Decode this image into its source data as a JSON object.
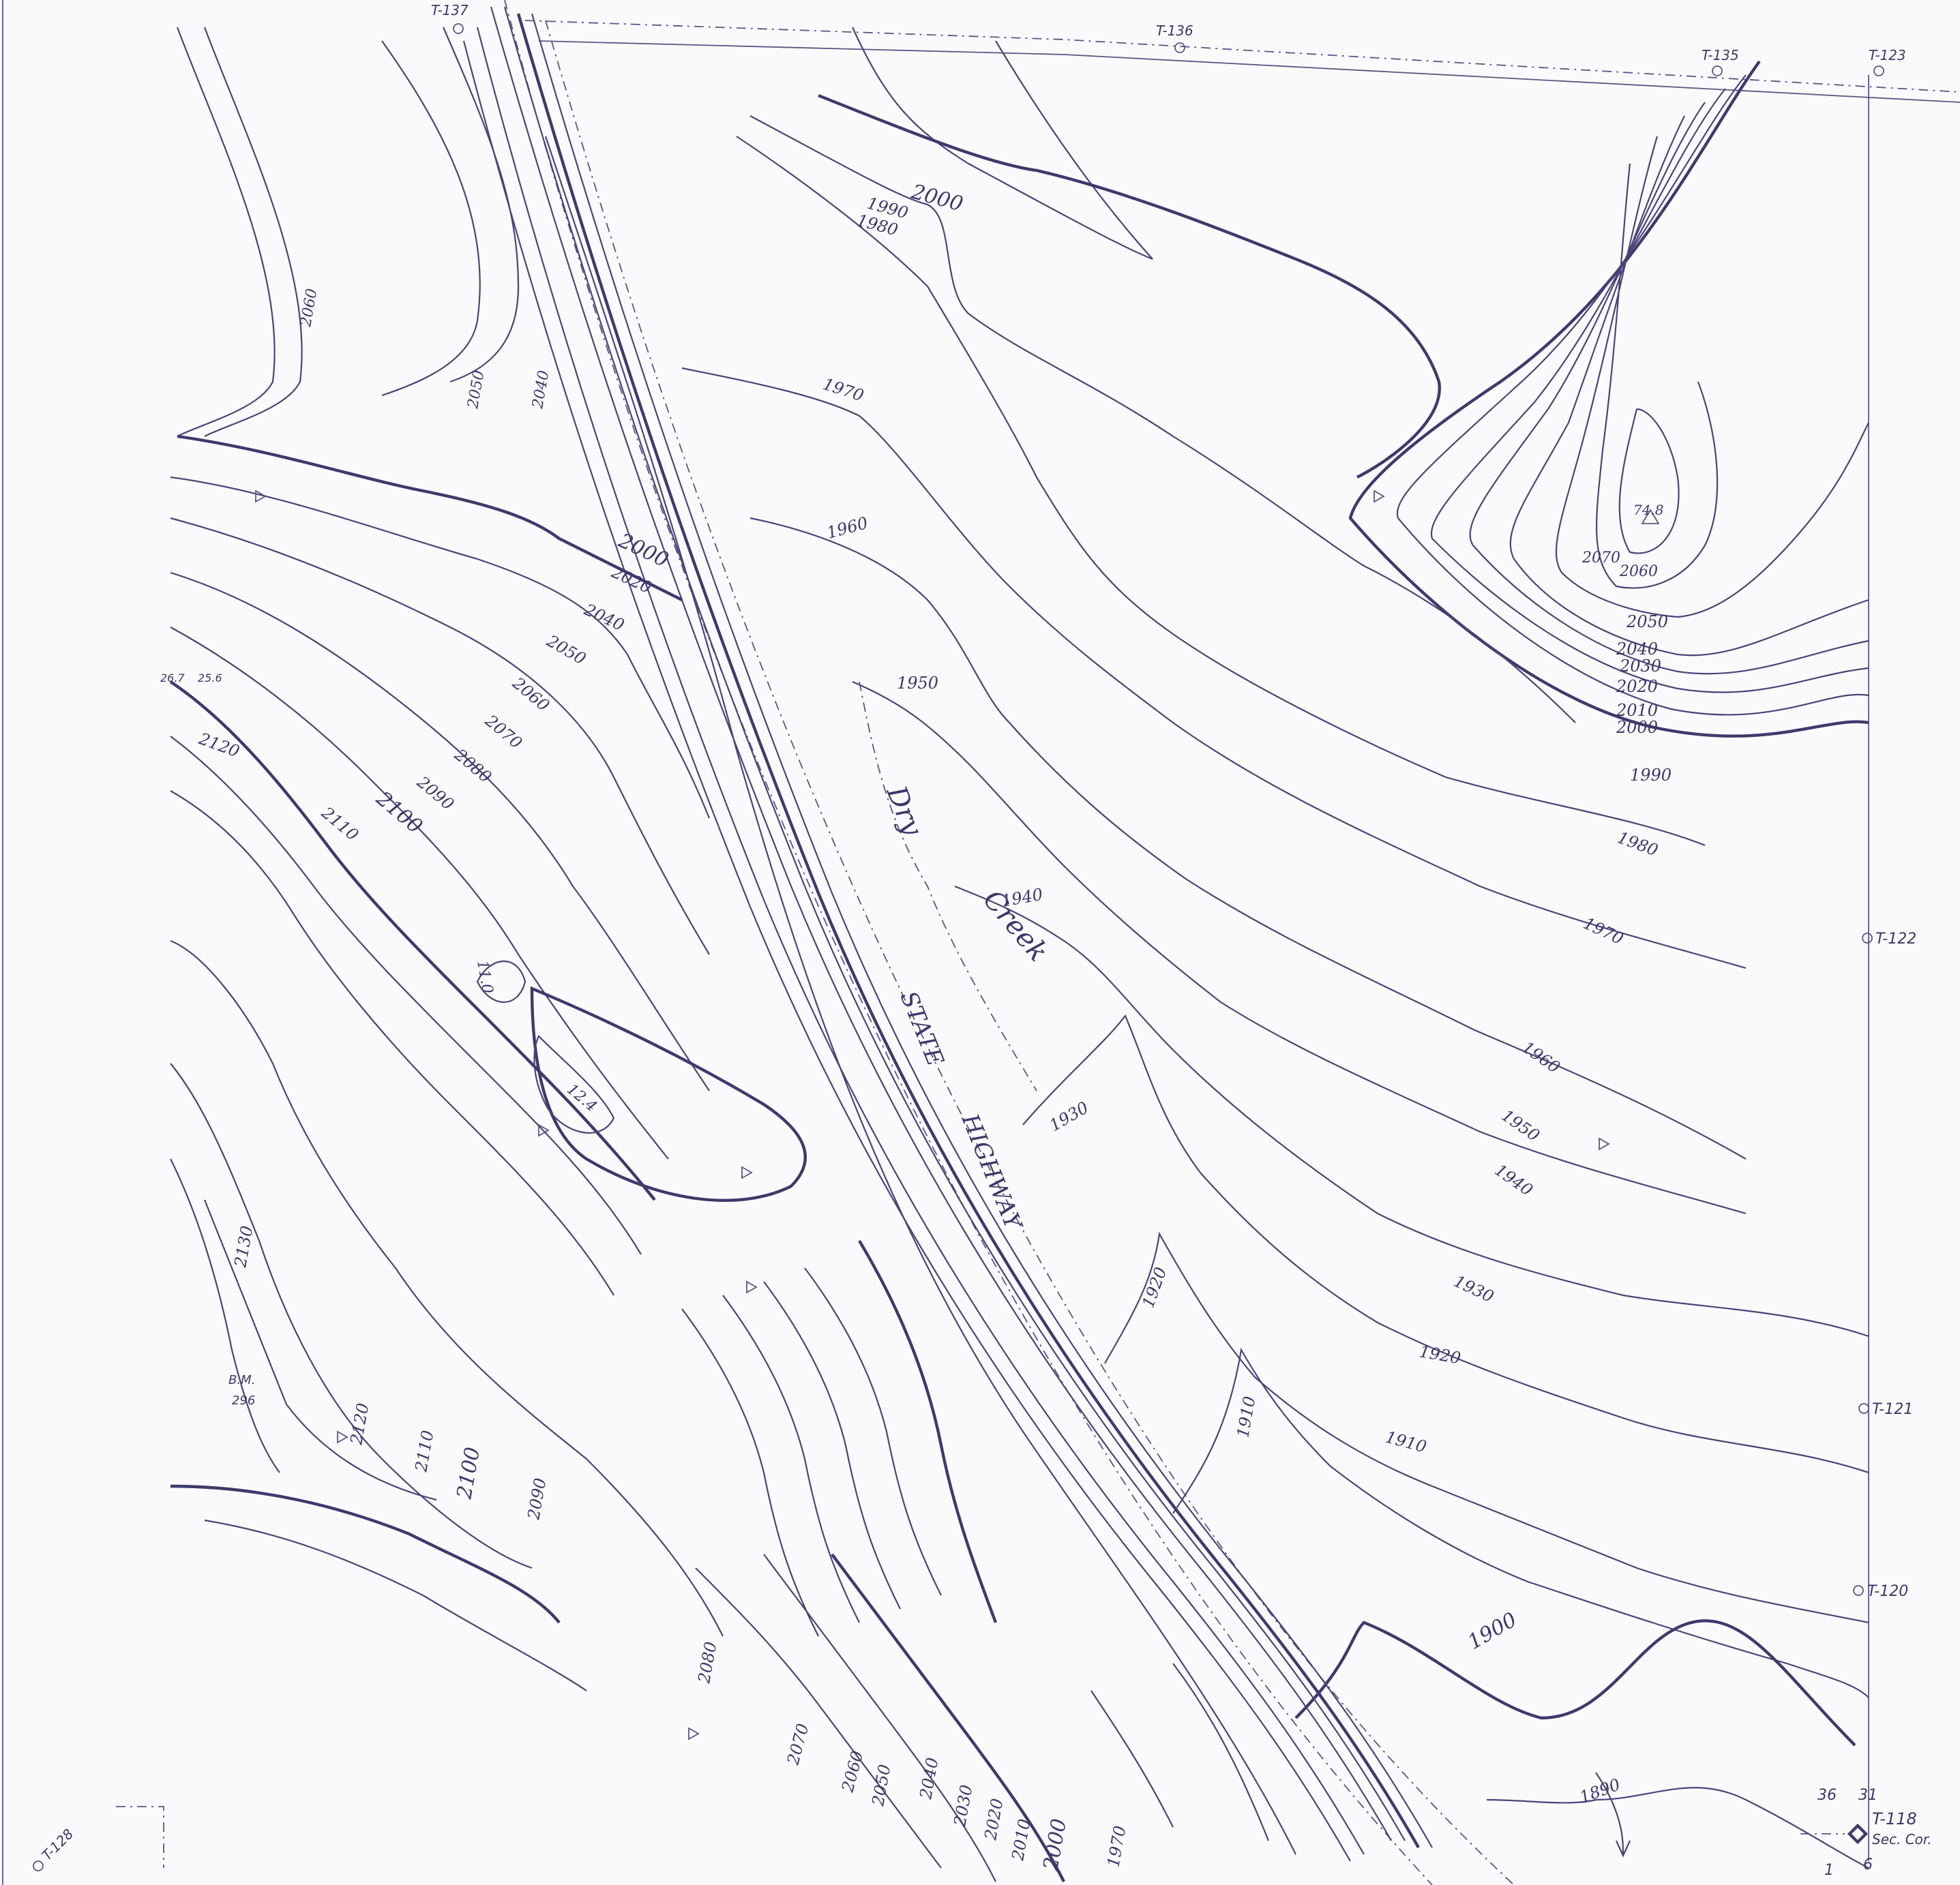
{
  "contour_labels": [
    "2000",
    "1990",
    "1980",
    "1970",
    "1960",
    "1950",
    "1940",
    "1930",
    "1920",
    "1910",
    "1900",
    "1890",
    "2010",
    "2020",
    "2030",
    "2040",
    "2050",
    "2060",
    "2070",
    "2080",
    "2090",
    "2100",
    "2110",
    "2120",
    "2130"
  ],
  "stations": [
    "T-137",
    "T-136",
    "T-135",
    "T-123",
    "T-122",
    "T-121",
    "T-120",
    "T-128",
    "T-118"
  ],
  "road_label": [
    "STATE",
    "HIGHWAY"
  ],
  "creek_label": [
    "Dry",
    "Creek"
  ],
  "spot_elevations": [
    "74.8",
    "11.0",
    "12.4",
    "26.7",
    "25.6"
  ],
  "benchmark": [
    "B.M.",
    "296"
  ],
  "corner": {
    "sections_top": [
      "36",
      "31"
    ],
    "sections_bottom": [
      "1",
      "6"
    ],
    "label": "Sec. Cor."
  },
  "colors": {
    "ink": "#4a4577",
    "paper": "#fafafc"
  }
}
